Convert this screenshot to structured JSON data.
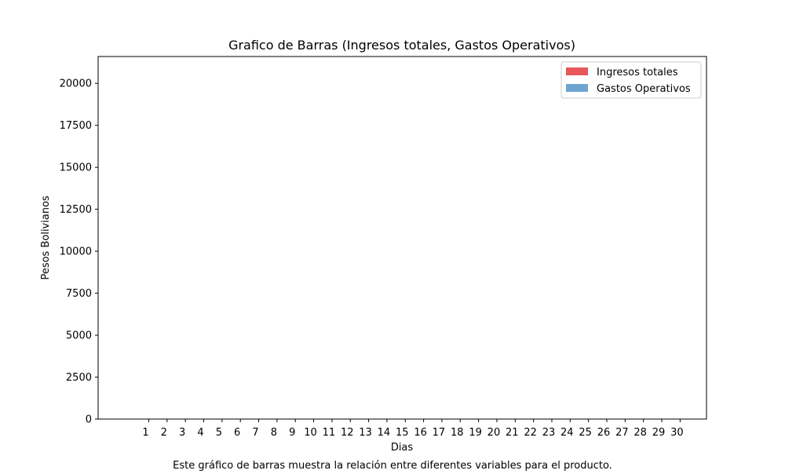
{
  "chart_data": {
    "type": "bar",
    "title": "Grafico de Barras (Ingresos totales, Gastos Operativos)",
    "xlabel": "Dias",
    "ylabel": "Pesos Bolivianos",
    "categories": [
      "1",
      "2",
      "3",
      "4",
      "5",
      "6",
      "7",
      "8",
      "9",
      "10",
      "11",
      "12",
      "13",
      "14",
      "15",
      "16",
      "17",
      "18",
      "19",
      "20",
      "21",
      "22",
      "23",
      "24",
      "25",
      "26",
      "27",
      "28",
      "29",
      "30"
    ],
    "yticks": [
      0,
      2500,
      5000,
      7500,
      10000,
      12500,
      15000,
      17500,
      20000
    ],
    "ylim": [
      0,
      21600
    ],
    "grid": false,
    "legend_position": "top-right",
    "series": [
      {
        "name": "Ingresos totales",
        "color": "#e8575a",
        "values": [
          0,
          0,
          0,
          0,
          0,
          0,
          0,
          0,
          0,
          0,
          0,
          0,
          0,
          0,
          0,
          0,
          0,
          0,
          0,
          0,
          0,
          0,
          0,
          0,
          0,
          0,
          0,
          0,
          0,
          0
        ]
      },
      {
        "name": "Gastos Operativos",
        "color": "#6fa3d0",
        "values": [
          0,
          0,
          0,
          0,
          0,
          0,
          0,
          0,
          0,
          0,
          0,
          0,
          0,
          0,
          0,
          0,
          0,
          0,
          0,
          0,
          0,
          0,
          0,
          0,
          0,
          0,
          0,
          0,
          0,
          0
        ]
      }
    ],
    "caption": "Este gráfico de barras muestra la relación entre diferentes variables para el producto."
  }
}
